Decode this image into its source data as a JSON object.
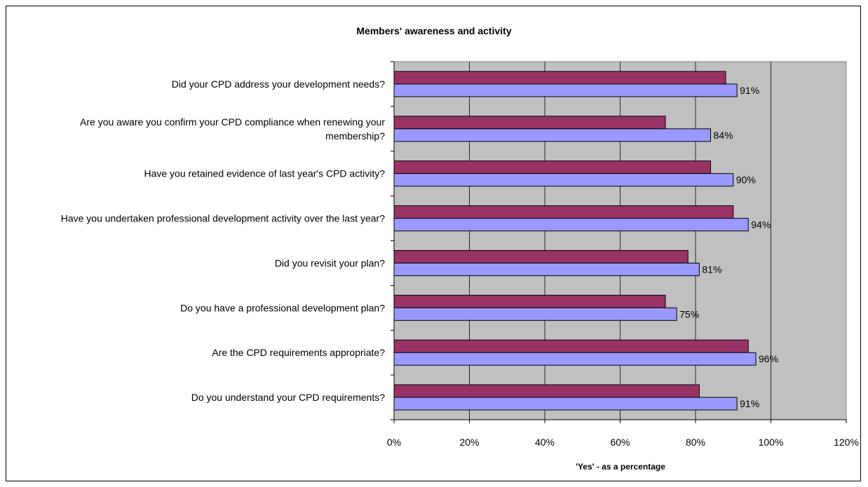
{
  "chart_data": {
    "type": "bar",
    "orientation": "horizontal",
    "title": "Members' awareness and activity",
    "xlabel": "'Yes' - as a percentage",
    "ylabel": "",
    "xlim": [
      0,
      120
    ],
    "x_ticks": [
      "0%",
      "20%",
      "40%",
      "60%",
      "80%",
      "100%",
      "120%"
    ],
    "grid": "vertical",
    "legend": "none",
    "categories": [
      [
        "Did your CPD address your development needs?"
      ],
      [
        "Are you aware you confirm your CPD compliance when renewing your",
        "membership?"
      ],
      [
        "Have you retained evidence of last year's CPD activity?"
      ],
      [
        "Have you undertaken professional development activity over the last year?"
      ],
      [
        "Did you revisit your plan?"
      ],
      [
        "Do you have a professional development plan?"
      ],
      [
        "Are the CPD requirements appropriate?"
      ],
      [
        "Do you understand your CPD requirements?"
      ]
    ],
    "series": [
      {
        "values": [
          88,
          72,
          84,
          90,
          78,
          72,
          94,
          81
        ],
        "color": "#993366"
      },
      {
        "values": [
          91,
          84,
          90,
          94,
          81,
          75,
          96,
          91
        ],
        "color": "#9999ff",
        "data_labels": [
          "91%",
          "84%",
          "90%",
          "94%",
          "81%",
          "75%",
          "96%",
          "91%"
        ]
      }
    ],
    "plot_background": "#c0c0c0",
    "highlight_background_beyond_100": "#c0c0c0"
  }
}
